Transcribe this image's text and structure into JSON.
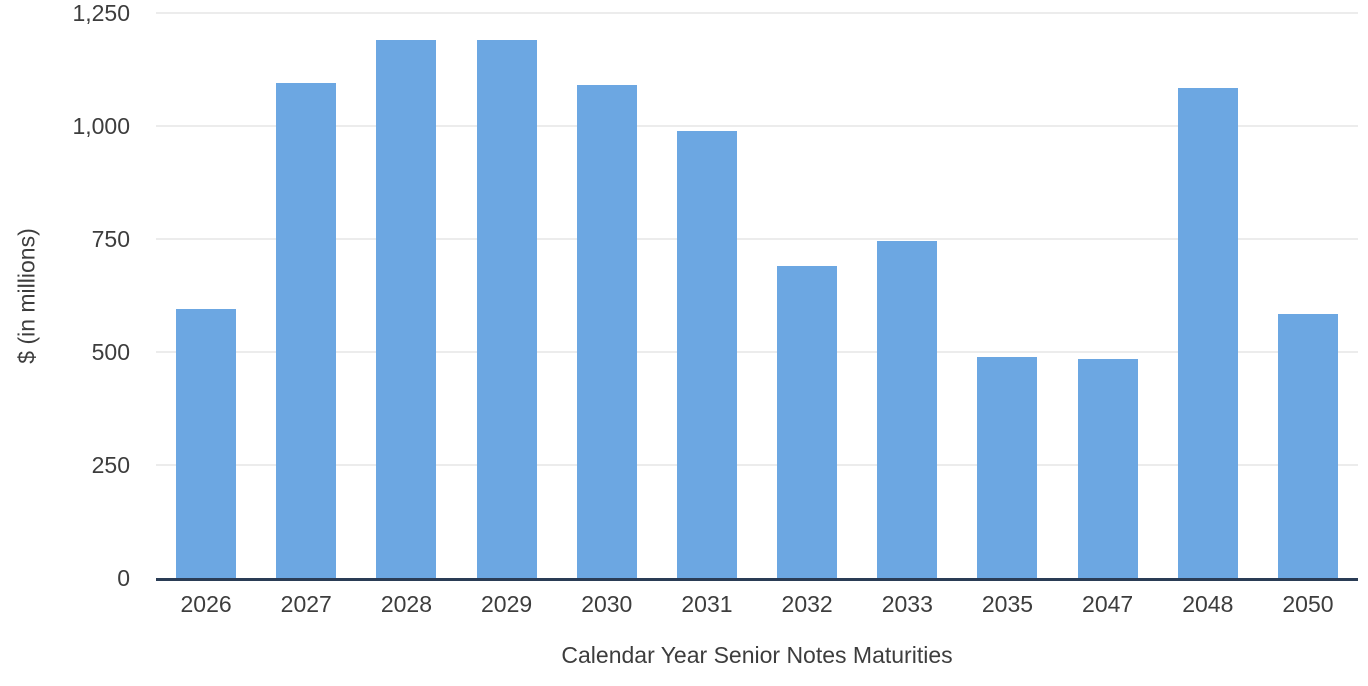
{
  "chart_data": {
    "type": "bar",
    "categories": [
      "2026",
      "2027",
      "2028",
      "2029",
      "2030",
      "2031",
      "2032",
      "2033",
      "2035",
      "2047",
      "2048",
      "2050"
    ],
    "values": [
      595,
      1095,
      1190,
      1190,
      1090,
      990,
      690,
      745,
      490,
      485,
      1085,
      585
    ],
    "xlabel": "Calendar Year Senior Notes Maturities",
    "ylabel": "$ (in millions)",
    "ylim": [
      0,
      1250
    ],
    "yticks": [
      {
        "value": 0,
        "label": "0"
      },
      {
        "value": 250,
        "label": "250"
      },
      {
        "value": 500,
        "label": "500"
      },
      {
        "value": 750,
        "label": "750"
      },
      {
        "value": 1000,
        "label": "1,000"
      },
      {
        "value": 1250,
        "label": "1,250"
      }
    ],
    "grid": true,
    "legend": "none",
    "colors": {
      "bar": "#6CA7E2",
      "axis_line": "#2A3C55",
      "gridline": "#ECECEC",
      "text": "#3D3D3D"
    }
  }
}
